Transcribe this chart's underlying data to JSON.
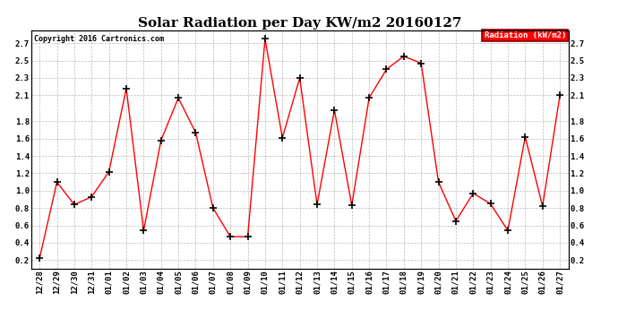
{
  "title": "Solar Radiation per Day KW/m2 20160127",
  "copyright": "Copyright 2016 Cartronics.com",
  "legend_label": "Radiation (kW/m2)",
  "labels": [
    "12/28",
    "12/29",
    "12/30",
    "12/31",
    "01/01",
    "01/02",
    "01/03",
    "01/04",
    "01/05",
    "01/06",
    "01/07",
    "01/08",
    "01/09",
    "01/10",
    "01/11",
    "01/12",
    "01/13",
    "01/14",
    "01/15",
    "01/16",
    "01/17",
    "01/18",
    "01/19",
    "01/20",
    "01/21",
    "01/22",
    "01/23",
    "01/24",
    "01/25",
    "01/26",
    "01/27"
  ],
  "values": [
    0.22,
    1.1,
    0.84,
    0.93,
    1.22,
    2.18,
    0.54,
    1.58,
    2.07,
    1.67,
    0.8,
    0.47,
    0.47,
    2.75,
    1.61,
    2.3,
    0.84,
    1.93,
    0.83,
    2.07,
    2.4,
    2.55,
    2.47,
    1.1,
    0.65,
    0.97,
    0.85,
    0.54,
    1.62,
    0.82,
    2.1
  ],
  "line_color": "red",
  "marker_color": "black",
  "marker_style": "+",
  "ylim": [
    0.1,
    2.85
  ],
  "yticks": [
    0.2,
    0.4,
    0.6,
    0.8,
    1.0,
    1.2,
    1.4,
    1.6,
    1.8,
    2.1,
    2.3,
    2.5,
    2.7
  ],
  "grid_color": "#bbbbbb",
  "bg_color": "#ffffff",
  "title_fontsize": 11,
  "tick_fontsize": 6.5,
  "legend_bg": "#ff0000",
  "legend_text_color": "#ffffff"
}
